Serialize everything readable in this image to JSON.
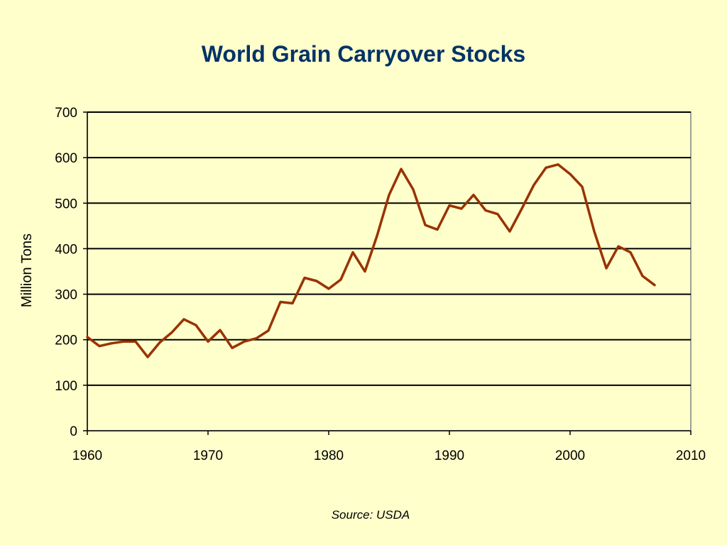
{
  "chart_data": {
    "type": "line",
    "title": "World Grain Carryover Stocks",
    "xlabel": "",
    "ylabel": "Million Tons",
    "xlim": [
      1960,
      2010
    ],
    "ylim": [
      0,
      700
    ],
    "x_ticks": [
      "1960",
      "1970",
      "1980",
      "1990",
      "2000",
      "2010"
    ],
    "y_ticks": [
      "0",
      "100",
      "200",
      "300",
      "400",
      "500",
      "600",
      "700"
    ],
    "grid": "horizontal",
    "legend": "none",
    "series": [
      {
        "color": "#993300",
        "x": [
          1960,
          1961,
          1962,
          1963,
          1964,
          1965,
          1966,
          1967,
          1968,
          1969,
          1970,
          1971,
          1972,
          1973,
          1974,
          1975,
          1976,
          1977,
          1978,
          1979,
          1980,
          1981,
          1982,
          1983,
          1984,
          1985,
          1986,
          1987,
          1988,
          1989,
          1990,
          1991,
          1992,
          1993,
          1994,
          1995,
          1996,
          1997,
          1998,
          1999,
          2000,
          2001,
          2002,
          2003,
          2004,
          2005,
          2006,
          2007
        ],
        "values": [
          206,
          186,
          192,
          196,
          196,
          162,
          194,
          216,
          245,
          232,
          196,
          221,
          182,
          196,
          203,
          220,
          283,
          280,
          336,
          329,
          312,
          332,
          392,
          350,
          428,
          518,
          575,
          530,
          452,
          442,
          495,
          488,
          518,
          484,
          476,
          438,
          488,
          540,
          578,
          585,
          564,
          536,
          438,
          357,
          405,
          392,
          340,
          320
        ]
      }
    ]
  },
  "source": "Source: USDA"
}
